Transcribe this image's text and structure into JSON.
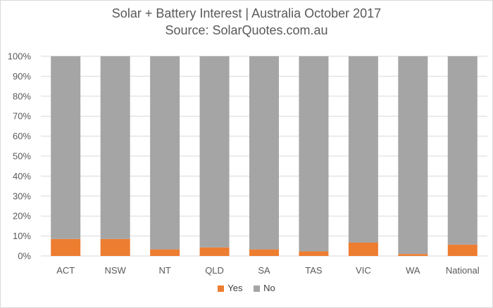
{
  "title": "Solar + Battery Interest | Australia October 2017",
  "subtitle": "Source: SolarQuotes.com.au",
  "colors": {
    "yes": "#ed7d31",
    "no": "#a5a5a5",
    "grid": "#d9d9d9",
    "text": "#595959"
  },
  "chart_data": {
    "type": "bar",
    "stacked": "percent",
    "categories": [
      "ACT",
      "NSW",
      "NT",
      "QLD",
      "SA",
      "TAS",
      "VIC",
      "WA",
      "National"
    ],
    "series": [
      {
        "name": "Yes",
        "values": [
          8.5,
          8.5,
          3.3,
          4.3,
          3.3,
          2.3,
          6.7,
          1.0,
          5.7
        ]
      },
      {
        "name": "No",
        "values": [
          91.5,
          91.5,
          96.7,
          95.7,
          96.7,
          97.7,
          93.3,
          99.0,
          94.3
        ]
      }
    ],
    "ylim": [
      0,
      100
    ],
    "yticks": [
      "0%",
      "10%",
      "20%",
      "30%",
      "40%",
      "50%",
      "60%",
      "70%",
      "80%",
      "90%",
      "100%"
    ],
    "grid": true,
    "legend": "bottom"
  }
}
